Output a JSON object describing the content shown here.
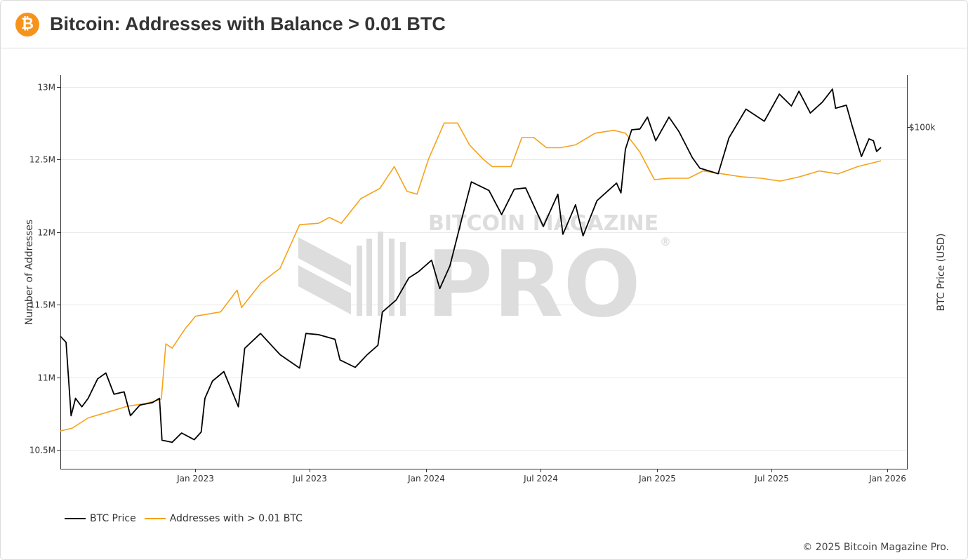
{
  "header": {
    "logo_glyph": "₿",
    "title": "Bitcoin: Addresses with Balance > 0.01 BTC"
  },
  "watermark": {
    "line1": "BITCOIN MAGAZINE",
    "line2": "PRO",
    "reg": "®"
  },
  "footer": {
    "copyright": "© 2025 Bitcoin Magazine Pro."
  },
  "colors": {
    "btc_price": "#000000",
    "addresses": "#f7a21b",
    "logo": "#f7931a",
    "grid": "#e8e8e8",
    "watermark": "#dddddd"
  },
  "chart_data": {
    "type": "line",
    "x_ticks": [
      "Jan 2023",
      "Jul 2023",
      "Jan 2024",
      "Jul 2024",
      "Jan 2025",
      "Jul 2025",
      "Jan 2026"
    ],
    "y_left": {
      "label": "Number of Addresses",
      "ticks": [
        "10.5M",
        "11M",
        "11.5M",
        "12M",
        "12.5M",
        "13M"
      ],
      "tick_values": [
        10500000,
        11000000,
        11500000,
        12000000,
        12500000,
        13000000
      ],
      "range": [
        10370000,
        13080000
      ]
    },
    "y_right": {
      "label": "BTC Price (USD)",
      "ticks": [
        "$100k"
      ],
      "tick_values": [
        100000
      ],
      "scale": "log",
      "range": [
        14000,
        135000
      ]
    },
    "legend": [
      "BTC Price",
      "Addresses with > 0.01 BTC"
    ],
    "legend_position": "bottom-left",
    "grid": true,
    "x_range": [
      "2022-06-01",
      "2026-02-01"
    ],
    "series": [
      {
        "name": "BTC Price",
        "axis": "right",
        "points": [
          [
            "2022-06-01",
            30000
          ],
          [
            "2022-06-10",
            29000
          ],
          [
            "2022-06-18",
            19000
          ],
          [
            "2022-06-25",
            21000
          ],
          [
            "2022-07-05",
            20000
          ],
          [
            "2022-07-15",
            21000
          ],
          [
            "2022-07-30",
            23500
          ],
          [
            "2022-08-12",
            24300
          ],
          [
            "2022-08-25",
            21500
          ],
          [
            "2022-09-10",
            21800
          ],
          [
            "2022-09-20",
            19000
          ],
          [
            "2022-10-05",
            20200
          ],
          [
            "2022-10-25",
            20500
          ],
          [
            "2022-11-05",
            21000
          ],
          [
            "2022-11-09",
            16500
          ],
          [
            "2022-11-25",
            16300
          ],
          [
            "2022-12-10",
            17200
          ],
          [
            "2022-12-30",
            16550
          ],
          [
            "2023-01-10",
            17300
          ],
          [
            "2023-01-16",
            21000
          ],
          [
            "2023-01-28",
            23200
          ],
          [
            "2023-02-15",
            24500
          ],
          [
            "2023-03-10",
            20000
          ],
          [
            "2023-03-20",
            28000
          ],
          [
            "2023-04-14",
            30500
          ],
          [
            "2023-05-15",
            27000
          ],
          [
            "2023-06-15",
            25000
          ],
          [
            "2023-06-25",
            30500
          ],
          [
            "2023-07-15",
            30300
          ],
          [
            "2023-08-10",
            29500
          ],
          [
            "2023-08-18",
            26200
          ],
          [
            "2023-09-11",
            25100
          ],
          [
            "2023-09-30",
            27000
          ],
          [
            "2023-10-17",
            28500
          ],
          [
            "2023-10-24",
            34500
          ],
          [
            "2023-11-15",
            37000
          ],
          [
            "2023-12-05",
            42000
          ],
          [
            "2023-12-20",
            43500
          ],
          [
            "2024-01-10",
            46500
          ],
          [
            "2024-01-23",
            39500
          ],
          [
            "2024-02-08",
            45000
          ],
          [
            "2024-02-28",
            60000
          ],
          [
            "2024-03-13",
            73000
          ],
          [
            "2024-04-10",
            69500
          ],
          [
            "2024-04-30",
            60500
          ],
          [
            "2024-05-20",
            70000
          ],
          [
            "2024-06-07",
            70500
          ],
          [
            "2024-07-05",
            56500
          ],
          [
            "2024-07-28",
            68000
          ],
          [
            "2024-08-05",
            54000
          ],
          [
            "2024-08-25",
            64000
          ],
          [
            "2024-09-06",
            53500
          ],
          [
            "2024-09-28",
            65500
          ],
          [
            "2024-10-29",
            72500
          ],
          [
            "2024-11-05",
            68500
          ],
          [
            "2024-11-12",
            88000
          ],
          [
            "2024-11-22",
            98500
          ],
          [
            "2024-12-05",
            99000
          ],
          [
            "2024-12-17",
            106000
          ],
          [
            "2024-12-30",
            92500
          ],
          [
            "2025-01-20",
            106000
          ],
          [
            "2025-02-05",
            97500
          ],
          [
            "2025-02-26",
            84000
          ],
          [
            "2025-03-10",
            79000
          ],
          [
            "2025-04-08",
            76500
          ],
          [
            "2025-04-25",
            94000
          ],
          [
            "2025-05-22",
            111000
          ],
          [
            "2025-06-20",
            103500
          ],
          [
            "2025-07-14",
            121000
          ],
          [
            "2025-08-02",
            113000
          ],
          [
            "2025-08-14",
            123000
          ],
          [
            "2025-09-01",
            108500
          ],
          [
            "2025-09-20",
            115500
          ],
          [
            "2025-10-06",
            124500
          ],
          [
            "2025-10-11",
            111500
          ],
          [
            "2025-10-28",
            113500
          ],
          [
            "2025-11-06",
            101000
          ],
          [
            "2025-11-21",
            84500
          ],
          [
            "2025-12-03",
            93500
          ],
          [
            "2025-12-10",
            92500
          ],
          [
            "2025-12-15",
            87000
          ],
          [
            "2025-12-22",
            89000
          ]
        ]
      },
      {
        "name": "Addresses with > 0.01 BTC",
        "axis": "left",
        "points": [
          [
            "2022-06-01",
            10630000
          ],
          [
            "2022-06-20",
            10650000
          ],
          [
            "2022-07-15",
            10720000
          ],
          [
            "2022-08-15",
            10760000
          ],
          [
            "2022-09-15",
            10800000
          ],
          [
            "2022-10-15",
            10820000
          ],
          [
            "2022-11-08",
            10850000
          ],
          [
            "2022-11-15",
            11230000
          ],
          [
            "2022-11-25",
            11200000
          ],
          [
            "2022-12-15",
            11330000
          ],
          [
            "2023-01-01",
            11420000
          ],
          [
            "2023-02-10",
            11450000
          ],
          [
            "2023-03-08",
            11600000
          ],
          [
            "2023-03-15",
            11480000
          ],
          [
            "2023-04-15",
            11650000
          ],
          [
            "2023-05-15",
            11750000
          ],
          [
            "2023-06-15",
            12050000
          ],
          [
            "2023-07-15",
            12060000
          ],
          [
            "2023-08-01",
            12100000
          ],
          [
            "2023-08-20",
            12060000
          ],
          [
            "2023-09-20",
            12230000
          ],
          [
            "2023-10-20",
            12300000
          ],
          [
            "2023-11-12",
            12450000
          ],
          [
            "2023-12-02",
            12280000
          ],
          [
            "2023-12-18",
            12260000
          ],
          [
            "2024-01-05",
            12500000
          ],
          [
            "2024-01-30",
            12750000
          ],
          [
            "2024-02-20",
            12750000
          ],
          [
            "2024-03-10",
            12600000
          ],
          [
            "2024-04-01",
            12500000
          ],
          [
            "2024-04-15",
            12450000
          ],
          [
            "2024-05-15",
            12450000
          ],
          [
            "2024-06-01",
            12650000
          ],
          [
            "2024-06-20",
            12650000
          ],
          [
            "2024-07-10",
            12580000
          ],
          [
            "2024-08-01",
            12580000
          ],
          [
            "2024-08-25",
            12600000
          ],
          [
            "2024-09-25",
            12680000
          ],
          [
            "2024-10-25",
            12700000
          ],
          [
            "2024-11-12",
            12680000
          ],
          [
            "2024-12-05",
            12550000
          ],
          [
            "2024-12-28",
            12360000
          ],
          [
            "2025-01-20",
            12370000
          ],
          [
            "2025-02-20",
            12370000
          ],
          [
            "2025-03-15",
            12420000
          ],
          [
            "2025-04-15",
            12400000
          ],
          [
            "2025-05-15",
            12380000
          ],
          [
            "2025-06-15",
            12370000
          ],
          [
            "2025-07-15",
            12350000
          ],
          [
            "2025-08-15",
            12380000
          ],
          [
            "2025-09-15",
            12420000
          ],
          [
            "2025-10-15",
            12400000
          ],
          [
            "2025-11-15",
            12450000
          ],
          [
            "2025-12-22",
            12490000
          ]
        ]
      }
    ]
  }
}
